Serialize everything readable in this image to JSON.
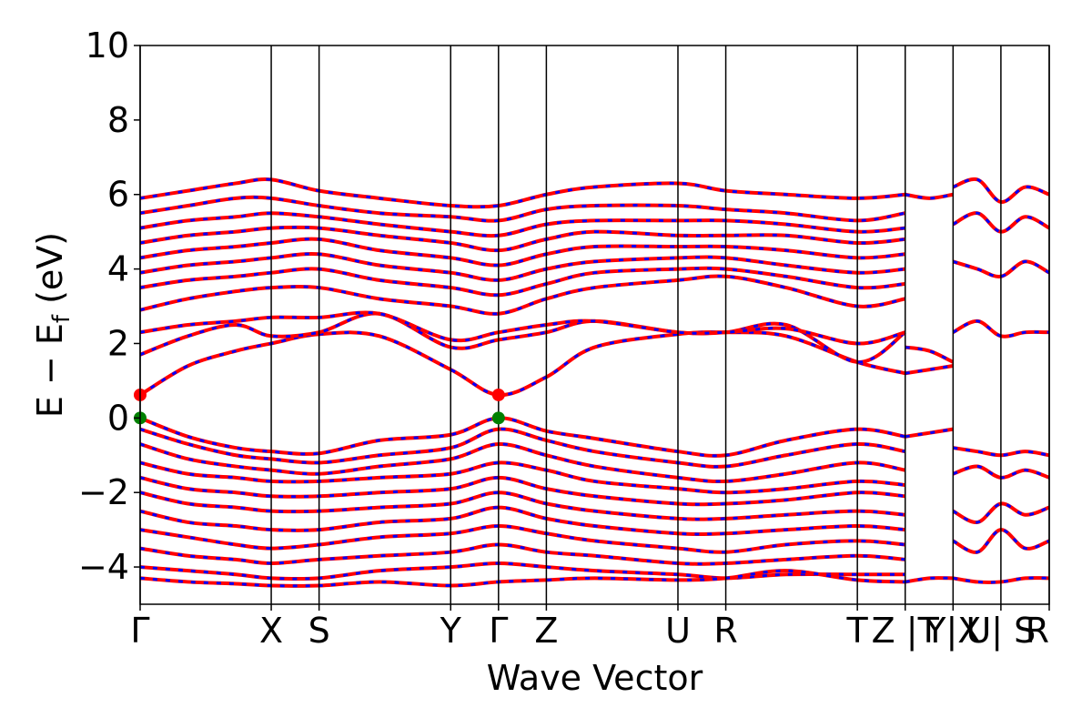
{
  "chart_data": {
    "type": "line",
    "title": "",
    "xlabel": "Wave Vector",
    "ylabel_main": "E − E",
    "ylabel_sub": "f",
    "ylabel_unit": " (eV)",
    "ylim": [
      -5,
      10
    ],
    "yticks": [
      -4,
      -2,
      0,
      2,
      4,
      6,
      8,
      10
    ],
    "ytick_labels": [
      "−4",
      "−2",
      "0",
      "2",
      "4",
      "6",
      "8",
      "10"
    ],
    "xlim": [
      0,
      19.0
    ],
    "kpoints": [
      {
        "label": "Γ",
        "x": 0.0
      },
      {
        "label": "X",
        "x": 2.74
      },
      {
        "label": "S",
        "x": 3.74
      },
      {
        "label": "Y",
        "x": 6.49
      },
      {
        "label": "Γ",
        "x": 7.49
      },
      {
        "label": "Z",
        "x": 8.49
      },
      {
        "label": "U",
        "x": 11.24
      },
      {
        "label": "R",
        "x": 12.24
      },
      {
        "label": "T",
        "x": 14.99
      },
      {
        "label": "Z |T",
        "x": 15.99
      },
      {
        "label": "Y|X",
        "x": 16.99
      },
      {
        "label": "U| S",
        "x": 17.99
      },
      {
        "label": "R",
        "x": 19.0
      }
    ],
    "grid": false,
    "legend": "none",
    "colors": {
      "spin_up": "#ff0000",
      "spin_down": "#0000ff",
      "cbm_marker": "#ff0000",
      "vbm_marker": "#008000"
    },
    "cbm_points": [
      {
        "x": 0.0,
        "y": 0.62
      },
      {
        "x": 7.49,
        "y": 0.62
      }
    ],
    "vbm_points": [
      {
        "x": 0.0,
        "y": 0.0
      },
      {
        "x": 7.49,
        "y": 0.0
      }
    ],
    "series": [
      {
        "x": [
          0,
          1,
          2,
          2.74,
          3.74,
          5,
          6.49,
          7.49,
          8.49,
          9.5,
          11.24,
          12.24,
          13.5,
          14.99,
          15.99
        ],
        "values": [
          0.0,
          -0.5,
          -0.8,
          -0.9,
          -0.95,
          -0.6,
          -0.45,
          0.0,
          -0.35,
          -0.55,
          -0.9,
          -1.0,
          -0.6,
          -0.3,
          -0.5
        ]
      },
      {
        "x": [
          0,
          1,
          2,
          2.74,
          3.74,
          5,
          6.49,
          7.49,
          8.49,
          9.5,
          11.24,
          12.24,
          13.5,
          14.99,
          15.99
        ],
        "values": [
          -0.3,
          -0.7,
          -1.0,
          -1.1,
          -1.2,
          -1.0,
          -0.8,
          -0.3,
          -0.6,
          -0.9,
          -1.2,
          -1.3,
          -1.0,
          -0.7,
          -0.9
        ]
      },
      {
        "x": [
          0,
          1,
          2,
          2.74,
          3.74,
          5,
          6.49,
          7.49,
          8.49,
          9.5,
          11.24,
          12.24,
          13.5,
          14.99,
          15.99
        ],
        "values": [
          -0.7,
          -1.1,
          -1.3,
          -1.4,
          -1.5,
          -1.3,
          -1.1,
          -0.7,
          -1.0,
          -1.3,
          -1.6,
          -1.7,
          -1.5,
          -1.2,
          -1.4
        ]
      },
      {
        "x": [
          0,
          1,
          2,
          2.74,
          3.74,
          5,
          6.49,
          7.49,
          8.49,
          9.5,
          11.24,
          12.24,
          13.5,
          14.99,
          15.99
        ],
        "values": [
          -1.2,
          -1.5,
          -1.6,
          -1.7,
          -1.7,
          -1.6,
          -1.5,
          -1.2,
          -1.4,
          -1.7,
          -1.9,
          -2.0,
          -1.9,
          -1.7,
          -1.8
        ]
      },
      {
        "x": [
          0,
          1,
          2,
          2.74,
          3.74,
          5,
          6.49,
          7.49,
          8.49,
          9.5,
          11.24,
          12.24,
          13.5,
          14.99,
          15.99
        ],
        "values": [
          -1.6,
          -1.9,
          -2.0,
          -2.1,
          -2.1,
          -2.0,
          -1.9,
          -1.6,
          -1.9,
          -2.1,
          -2.3,
          -2.3,
          -2.2,
          -2.0,
          -2.1
        ]
      },
      {
        "x": [
          0,
          1,
          2,
          2.74,
          3.74,
          5,
          6.49,
          7.49,
          8.49,
          9.5,
          11.24,
          12.24,
          13.5,
          14.99,
          15.99
        ],
        "values": [
          -2.0,
          -2.3,
          -2.4,
          -2.5,
          -2.5,
          -2.4,
          -2.3,
          -2.0,
          -2.3,
          -2.5,
          -2.7,
          -2.7,
          -2.6,
          -2.5,
          -2.6
        ]
      },
      {
        "x": [
          0,
          1,
          2,
          2.74,
          3.74,
          5,
          6.49,
          7.49,
          8.49,
          9.5,
          11.24,
          12.24,
          13.5,
          14.99,
          15.99
        ],
        "values": [
          -2.5,
          -2.8,
          -2.9,
          -3.0,
          -3.0,
          -2.8,
          -2.7,
          -2.4,
          -2.7,
          -2.9,
          -3.1,
          -3.1,
          -3.0,
          -2.9,
          -3.0
        ]
      },
      {
        "x": [
          0,
          1,
          2,
          2.74,
          3.74,
          5,
          6.49,
          7.49,
          8.49,
          9.5,
          11.24,
          12.24,
          13.5,
          14.99,
          15.99
        ],
        "values": [
          -3.0,
          -3.2,
          -3.4,
          -3.5,
          -3.4,
          -3.2,
          -3.1,
          -2.9,
          -3.1,
          -3.3,
          -3.5,
          -3.6,
          -3.4,
          -3.3,
          -3.4
        ]
      },
      {
        "x": [
          0,
          1,
          2,
          2.74,
          3.74,
          5,
          6.49,
          7.49,
          8.49,
          9.5,
          11.24,
          12.24,
          13.5,
          14.99,
          15.99
        ],
        "values": [
          -3.5,
          -3.7,
          -3.8,
          -3.9,
          -3.8,
          -3.7,
          -3.6,
          -3.4,
          -3.6,
          -3.7,
          -3.9,
          -3.9,
          -3.8,
          -3.7,
          -3.8
        ]
      },
      {
        "x": [
          0,
          1,
          2,
          2.74,
          3.74,
          5,
          6.49,
          7.49,
          8.49,
          9.5,
          11.24,
          12.24,
          13.5,
          14.99,
          15.99
        ],
        "values": [
          -4.0,
          -4.1,
          -4.2,
          -4.3,
          -4.3,
          -4.1,
          -4.0,
          -3.9,
          -4.0,
          -4.1,
          -4.2,
          -4.3,
          -4.2,
          -4.2,
          -4.2
        ]
      },
      {
        "x": [
          0,
          1,
          2,
          2.74,
          3.74,
          5,
          6.49,
          7.49,
          8.49,
          9.5,
          11.24,
          12.24,
          13.5,
          14.99,
          15.99
        ],
        "values": [
          -4.3,
          -4.4,
          -4.45,
          -4.5,
          -4.5,
          -4.4,
          -4.5,
          -4.4,
          -4.35,
          -4.3,
          -4.35,
          -4.3,
          -4.1,
          -4.35,
          -4.4
        ]
      },
      {
        "x": [
          0,
          1,
          2,
          2.74,
          3.74,
          5,
          6.49,
          7.49,
          8.49,
          9.5,
          11.24,
          12.24,
          13.5,
          14.99,
          15.99
        ],
        "values": [
          0.62,
          1.4,
          1.8,
          2.0,
          2.25,
          2.2,
          1.3,
          0.62,
          1.1,
          1.9,
          2.25,
          2.3,
          2.2,
          1.5,
          1.2
        ]
      },
      {
        "x": [
          0,
          1,
          2,
          2.74,
          3.74,
          5,
          6.49,
          7.49,
          8.49,
          9.5,
          11.24,
          12.24,
          13.5,
          14.99,
          15.99
        ],
        "values": [
          1.7,
          2.2,
          2.5,
          2.2,
          2.3,
          2.8,
          1.9,
          2.1,
          2.3,
          2.6,
          2.3,
          2.3,
          2.5,
          1.5,
          2.3
        ]
      },
      {
        "x": [
          0,
          1,
          2,
          2.74,
          3.74,
          5,
          6.49,
          7.49,
          8.49,
          9.5,
          11.24,
          12.24,
          13.5,
          14.99,
          15.99
        ],
        "values": [
          2.3,
          2.5,
          2.6,
          2.7,
          2.7,
          2.8,
          2.1,
          2.3,
          2.5,
          2.6,
          2.3,
          2.3,
          2.4,
          2.0,
          2.3
        ]
      },
      {
        "x": [
          0,
          1,
          2,
          2.74,
          3.74,
          5,
          6.49,
          7.49,
          8.49,
          9.5,
          11.24,
          12.24,
          13.5,
          14.99,
          15.99
        ],
        "values": [
          2.9,
          3.2,
          3.4,
          3.5,
          3.5,
          3.2,
          3.0,
          2.8,
          3.2,
          3.5,
          3.7,
          3.8,
          3.5,
          3.0,
          3.2
        ]
      },
      {
        "x": [
          0,
          1,
          2,
          2.74,
          3.74,
          5,
          6.49,
          7.49,
          8.49,
          9.5,
          11.24,
          12.24,
          13.5,
          14.99,
          15.99
        ],
        "values": [
          3.5,
          3.7,
          3.8,
          3.9,
          4.0,
          3.7,
          3.5,
          3.3,
          3.6,
          3.9,
          4.0,
          4.0,
          3.8,
          3.5,
          3.6
        ]
      },
      {
        "x": [
          0,
          1,
          2,
          2.74,
          3.74,
          5,
          6.49,
          7.49,
          8.49,
          9.5,
          11.24,
          12.24,
          13.5,
          14.99,
          15.99
        ],
        "values": [
          3.9,
          4.1,
          4.2,
          4.3,
          4.4,
          4.1,
          3.9,
          3.7,
          4.0,
          4.2,
          4.3,
          4.3,
          4.1,
          3.9,
          4.0
        ]
      },
      {
        "x": [
          0,
          1,
          2,
          2.74,
          3.74,
          5,
          6.49,
          7.49,
          8.49,
          9.5,
          11.24,
          12.24,
          13.5,
          14.99,
          15.99
        ],
        "values": [
          4.3,
          4.5,
          4.6,
          4.7,
          4.8,
          4.5,
          4.3,
          4.1,
          4.4,
          4.6,
          4.6,
          4.6,
          4.5,
          4.3,
          4.4
        ]
      },
      {
        "x": [
          0,
          1,
          2,
          2.74,
          3.74,
          5,
          6.49,
          7.49,
          8.49,
          9.5,
          11.24,
          12.24,
          13.5,
          14.99,
          15.99
        ],
        "values": [
          4.7,
          4.9,
          5.0,
          5.1,
          5.1,
          4.9,
          4.7,
          4.5,
          4.8,
          5.0,
          4.9,
          4.9,
          4.9,
          4.7,
          4.8
        ]
      },
      {
        "x": [
          0,
          1,
          2,
          2.74,
          3.74,
          5,
          6.49,
          7.49,
          8.49,
          9.5,
          11.24,
          12.24,
          13.5,
          14.99,
          15.99
        ],
        "values": [
          5.1,
          5.3,
          5.4,
          5.5,
          5.4,
          5.2,
          5.0,
          4.9,
          5.2,
          5.3,
          5.3,
          5.3,
          5.2,
          5.0,
          5.1
        ]
      },
      {
        "x": [
          0,
          1,
          2,
          2.74,
          3.74,
          5,
          6.49,
          7.49,
          8.49,
          9.5,
          11.24,
          12.24,
          13.5,
          14.99,
          15.99
        ],
        "values": [
          5.5,
          5.7,
          5.9,
          5.9,
          5.7,
          5.5,
          5.4,
          5.3,
          5.6,
          5.7,
          5.7,
          5.6,
          5.5,
          5.3,
          5.5
        ]
      },
      {
        "x": [
          0,
          1,
          2,
          2.74,
          3.74,
          5,
          6.49,
          7.49,
          8.49,
          9.5,
          11.24,
          12.24,
          13.5,
          14.99,
          15.99
        ],
        "values": [
          5.9,
          6.1,
          6.3,
          6.4,
          6.1,
          5.9,
          5.7,
          5.7,
          6.0,
          6.2,
          6.3,
          6.1,
          6.0,
          5.9,
          6.0
        ]
      },
      {
        "x": [
          15.99,
          16.5,
          16.99
        ],
        "values": [
          1.9,
          1.8,
          1.5
        ]
      },
      {
        "x": [
          15.99,
          16.5,
          16.99
        ],
        "values": [
          1.2,
          1.3,
          1.4
        ]
      },
      {
        "x": [
          15.99,
          16.5,
          16.99
        ],
        "values": [
          6.0,
          5.9,
          6.0
        ]
      },
      {
        "x": [
          15.99,
          16.5,
          16.99
        ],
        "values": [
          -0.5,
          -0.4,
          -0.3
        ]
      },
      {
        "x": [
          15.99,
          16.5,
          16.99
        ],
        "values": [
          -4.4,
          -4.3,
          -4.3
        ]
      },
      {
        "x": [
          16.99,
          17.5,
          17.99,
          18.5,
          19.0
        ],
        "values": [
          2.3,
          2.6,
          2.2,
          2.3,
          2.3
        ]
      },
      {
        "x": [
          16.99,
          17.5,
          17.99,
          18.5,
          19.0
        ],
        "values": [
          6.2,
          6.4,
          5.8,
          6.2,
          6.0
        ]
      },
      {
        "x": [
          16.99,
          17.5,
          17.99,
          18.5,
          19.0
        ],
        "values": [
          5.2,
          5.5,
          5.0,
          5.4,
          5.1
        ]
      },
      {
        "x": [
          16.99,
          17.5,
          17.99,
          18.5,
          19.0
        ],
        "values": [
          4.2,
          4.0,
          3.8,
          4.2,
          3.9
        ]
      },
      {
        "x": [
          16.99,
          17.5,
          17.99,
          18.5,
          19.0
        ],
        "values": [
          -0.8,
          -0.9,
          -1.0,
          -0.9,
          -1.0
        ]
      },
      {
        "x": [
          16.99,
          17.5,
          17.99,
          18.5,
          19.0
        ],
        "values": [
          -1.5,
          -1.3,
          -1.6,
          -1.4,
          -1.6
        ]
      },
      {
        "x": [
          16.99,
          17.5,
          17.99,
          18.5,
          19.0
        ],
        "values": [
          -2.5,
          -2.8,
          -2.3,
          -2.6,
          -2.4
        ]
      },
      {
        "x": [
          16.99,
          17.5,
          17.99,
          18.5,
          19.0
        ],
        "values": [
          -3.3,
          -3.6,
          -3.0,
          -3.5,
          -3.3
        ]
      },
      {
        "x": [
          16.99,
          17.5,
          17.99,
          18.5,
          19.0
        ],
        "values": [
          -4.3,
          -4.4,
          -4.4,
          -4.3,
          -4.3
        ]
      }
    ]
  }
}
